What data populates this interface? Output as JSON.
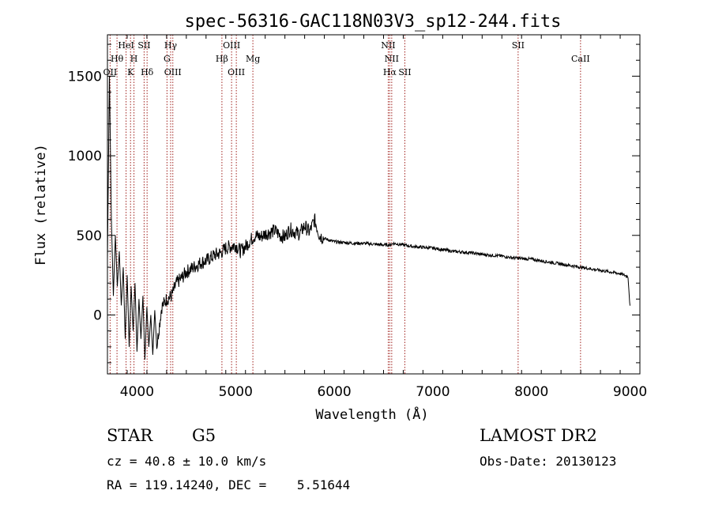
{
  "chart_data": {
    "type": "line",
    "title": "spec-56316-GAC118N03V3_sp12-244.fits",
    "xlabel": "Wavelength (Å)",
    "ylabel": "Flux (relative)",
    "xlim": [
      3700,
      9100
    ],
    "ylim": [
      -370,
      1760
    ],
    "x_ticks": [
      4000,
      5000,
      6000,
      7000,
      8000,
      9000
    ],
    "y_ticks": [
      0,
      500,
      1000,
      1500
    ],
    "series": [
      {
        "x": [
          3700,
          3720,
          3740,
          3760,
          3780,
          3800,
          3820,
          3840,
          3860,
          3880,
          3900,
          3920,
          3940,
          3960,
          3980,
          4000,
          4020,
          4040,
          4060,
          4080,
          4100,
          4120,
          4140,
          4160,
          4180,
          4200,
          4250,
          4300,
          4350,
          4400,
          4450,
          4500,
          4550,
          4600,
          4650,
          4700,
          4750,
          4800,
          4850,
          4900,
          4950,
          5000,
          5050,
          5100,
          5150,
          5200,
          5250,
          5300,
          5350,
          5400,
          5450,
          5500,
          5550,
          5600,
          5650,
          5700,
          5750,
          5800,
          5850,
          5900,
          6000,
          6100,
          6200,
          6300,
          6400,
          6500,
          6560,
          6600,
          6700,
          6800,
          6900,
          7000,
          7100,
          7200,
          7300,
          7400,
          7500,
          7600,
          7700,
          7800,
          7900,
          8000,
          8100,
          8200,
          8300,
          8400,
          8500,
          8600,
          8700,
          8800,
          8900,
          8980,
          9000
        ],
        "y": [
          350,
          1500,
          600,
          120,
          500,
          180,
          400,
          60,
          300,
          -150,
          250,
          -200,
          180,
          -100,
          200,
          -230,
          100,
          -150,
          120,
          -280,
          50,
          -200,
          0,
          -250,
          30,
          -200,
          50,
          100,
          120,
          200,
          230,
          270,
          290,
          310,
          330,
          340,
          360,
          380,
          390,
          420,
          430,
          440,
          400,
          430,
          470,
          500,
          490,
          510,
          520,
          530,
          500,
          490,
          540,
          520,
          510,
          560,
          520,
          600,
          500,
          480,
          460,
          455,
          450,
          450,
          445,
          440,
          440,
          450,
          440,
          430,
          425,
          420,
          410,
          400,
          395,
          390,
          380,
          375,
          370,
          360,
          355,
          350,
          340,
          330,
          320,
          310,
          300,
          290,
          280,
          270,
          260,
          240,
          50
        ]
      }
    ],
    "line_marks": [
      {
        "x": 3727,
        "labels": [
          "OII"
        ],
        "row": 3
      },
      {
        "x": 3797,
        "labels": [
          "Hθ"
        ],
        "row": 2
      },
      {
        "x": 3889,
        "labels": [
          "HeI"
        ],
        "row": 1
      },
      {
        "x": 3934,
        "labels": [
          "K"
        ],
        "row": 3
      },
      {
        "x": 3969,
        "labels": [
          "H"
        ],
        "row": 2
      },
      {
        "x": 4072,
        "labels": [
          "SII"
        ],
        "row": 1
      },
      {
        "x": 4102,
        "labels": [
          "Hδ"
        ],
        "row": 3
      },
      {
        "x": 4304,
        "labels": [
          "G"
        ],
        "row": 2
      },
      {
        "x": 4341,
        "labels": [
          "Hγ"
        ],
        "row": 1
      },
      {
        "x": 4363,
        "labels": [
          "OIII"
        ],
        "row": 3
      },
      {
        "x": 4861,
        "labels": [
          "Hβ"
        ],
        "row": 2
      },
      {
        "x": 4959,
        "labels": [
          "OIII"
        ],
        "row": 1
      },
      {
        "x": 5007,
        "labels": [
          "OIII"
        ],
        "row": 3
      },
      {
        "x": 5175,
        "labels": [
          "Mg"
        ],
        "row": 2
      },
      {
        "x": 6548,
        "labels": [
          "NII"
        ],
        "row": 1
      },
      {
        "x": 6563,
        "labels": [
          "Hα"
        ],
        "row": 3
      },
      {
        "x": 6583,
        "labels": [
          "NII"
        ],
        "row": 2
      },
      {
        "x": 6716,
        "labels": [
          "SII"
        ],
        "row": 3
      },
      {
        "x": 7865,
        "labels": [
          "SII"
        ],
        "row": 1
      },
      {
        "x": 8498,
        "labels": [
          "CaII"
        ],
        "row": 2
      }
    ],
    "colors": {
      "spectrum": "#000000",
      "line_marks": "#a0201c",
      "axes": "#000000"
    }
  },
  "info": {
    "class": "STAR",
    "subclass": "G5",
    "survey": "LAMOST DR2",
    "cz": "cz = 40.8 ± 10.0 km/s",
    "obs_date": "Obs-Date: 20130123",
    "radec": "RA = 119.14240, DEC =    5.51644"
  }
}
